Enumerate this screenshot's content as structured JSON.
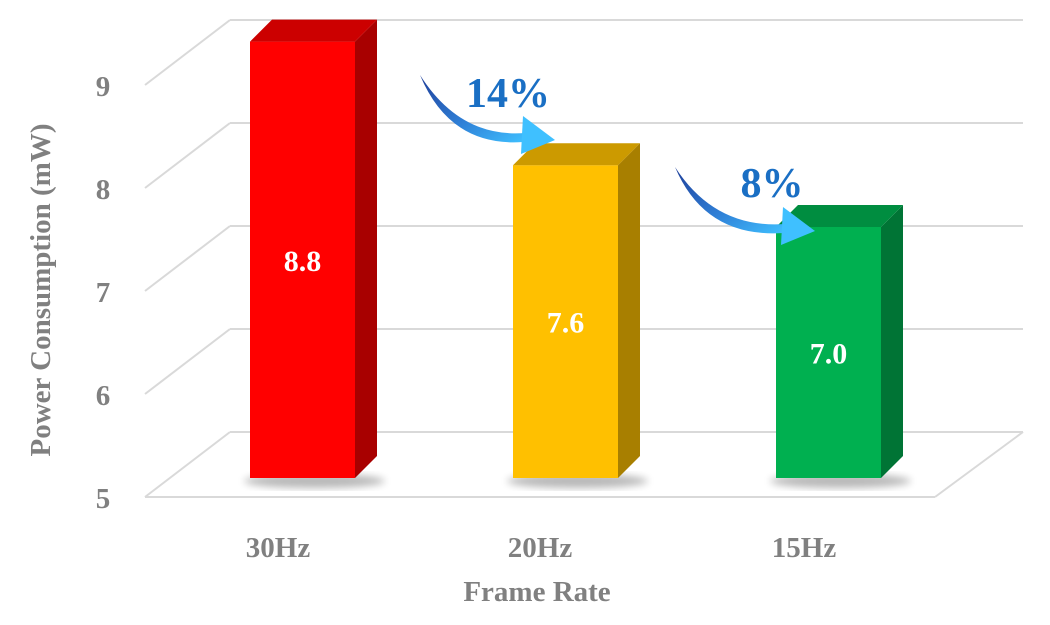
{
  "chart_data": {
    "type": "bar",
    "style": "3d-column",
    "categories": [
      "30Hz",
      "20Hz",
      "15Hz"
    ],
    "values": [
      8.8,
      7.6,
      7.0
    ],
    "value_labels": [
      "8.8",
      "7.6",
      "7.0"
    ],
    "bar_colors": [
      "#ff0000",
      "#ffc000",
      "#00b050"
    ],
    "title": "",
    "xlabel": "Frame Rate",
    "ylabel": "Power Consumption (mW)",
    "ylim": [
      5,
      9
    ],
    "yticks": [
      5,
      6,
      7,
      8,
      9
    ],
    "ytick_labels": [
      "5",
      "6",
      "7",
      "8",
      "9"
    ],
    "grid": true,
    "legend": "none",
    "annotations": [
      {
        "text": "14%",
        "from": "30Hz",
        "to": "20Hz",
        "color": "#1a6fc4"
      },
      {
        "text": "8%",
        "from": "20Hz",
        "to": "15Hz",
        "color": "#1a6fc4"
      }
    ]
  }
}
